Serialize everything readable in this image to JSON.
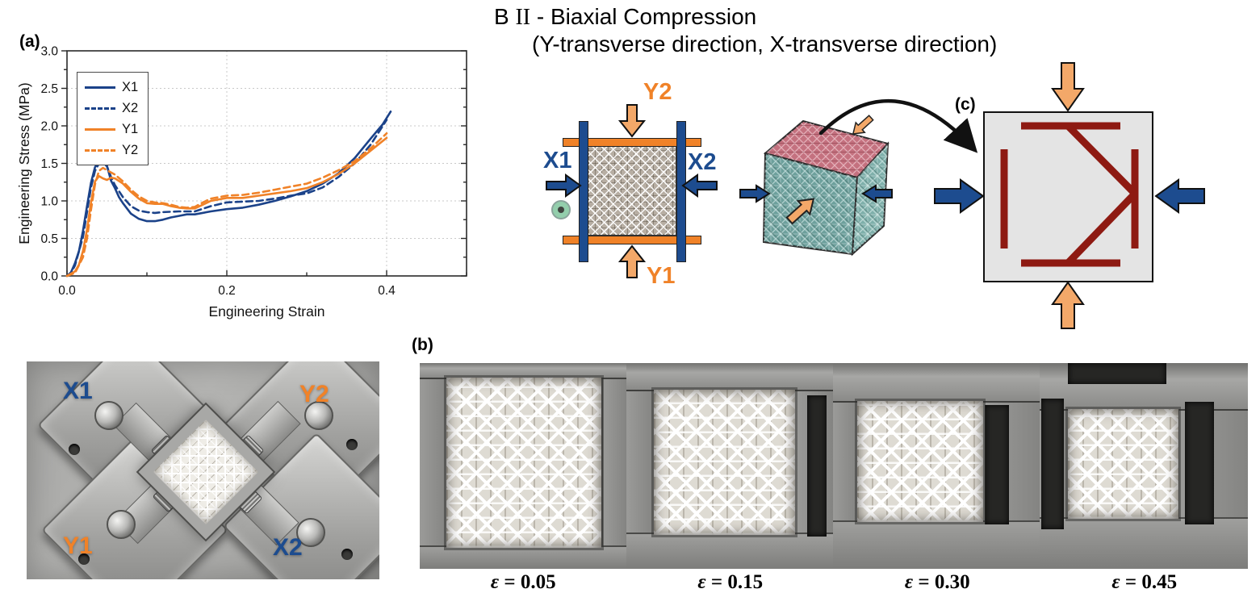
{
  "figure_title": {
    "prefix": "B",
    "roman_numeral": "II",
    "rest": "- Biaxial Compression",
    "line2": "(Y-transverse direction, X-transverse direction)"
  },
  "panel_labels": {
    "a": "(a)",
    "b": "(b)",
    "c": "(c)"
  },
  "chart_data": {
    "type": "line",
    "title": "",
    "xlabel": "Engineering Strain",
    "ylabel": "Engineering Stress (MPa)",
    "xlim": [
      0.0,
      0.5
    ],
    "ylim": [
      0.0,
      3.0
    ],
    "x_major_ticks": [
      0.0,
      0.2,
      0.4
    ],
    "x_minor_step": 0.1,
    "y_major_ticks": [
      0.0,
      0.5,
      1.0,
      1.5,
      2.0,
      2.5,
      3.0
    ],
    "y_minor_step": 0.25,
    "grid": "dotted",
    "legend_position": "upper-left",
    "series": [
      {
        "name": "X1",
        "color": "#1b4289",
        "style": "solid",
        "x": [
          0,
          0.005,
          0.01,
          0.015,
          0.02,
          0.025,
          0.03,
          0.035,
          0.04,
          0.045,
          0.05,
          0.055,
          0.06,
          0.065,
          0.07,
          0.08,
          0.09,
          0.1,
          0.11,
          0.12,
          0.13,
          0.14,
          0.15,
          0.16,
          0.18,
          0.2,
          0.22,
          0.24,
          0.26,
          0.28,
          0.3,
          0.32,
          0.34,
          0.36,
          0.38,
          0.395,
          0.405
        ],
        "y": [
          0,
          0.05,
          0.17,
          0.33,
          0.6,
          0.93,
          1.24,
          1.45,
          1.53,
          1.55,
          1.47,
          1.27,
          1.17,
          1.05,
          0.97,
          0.83,
          0.76,
          0.73,
          0.73,
          0.75,
          0.78,
          0.8,
          0.82,
          0.82,
          0.86,
          0.89,
          0.91,
          0.95,
          1.0,
          1.06,
          1.13,
          1.23,
          1.37,
          1.57,
          1.83,
          2.02,
          2.19
        ]
      },
      {
        "name": "X2",
        "color": "#1b4289",
        "style": "dashed",
        "x": [
          0,
          0.005,
          0.01,
          0.02,
          0.025,
          0.03,
          0.035,
          0.04,
          0.045,
          0.05,
          0.055,
          0.06,
          0.07,
          0.08,
          0.09,
          0.1,
          0.11,
          0.12,
          0.14,
          0.16,
          0.18,
          0.2,
          0.22,
          0.24,
          0.26,
          0.28,
          0.3,
          0.32,
          0.34,
          0.36,
          0.38,
          0.4
        ],
        "y": [
          0,
          0.04,
          0.14,
          0.52,
          0.85,
          1.18,
          1.4,
          1.5,
          1.52,
          1.46,
          1.32,
          1.21,
          1.05,
          0.93,
          0.87,
          0.85,
          0.84,
          0.85,
          0.86,
          0.86,
          0.93,
          0.98,
          0.99,
          1.0,
          1.03,
          1.07,
          1.1,
          1.18,
          1.32,
          1.5,
          1.75,
          2.08
        ]
      },
      {
        "name": "Y1",
        "color": "#f08228",
        "style": "solid",
        "x": [
          0,
          0.01,
          0.015,
          0.02,
          0.025,
          0.03,
          0.035,
          0.04,
          0.045,
          0.05,
          0.055,
          0.06,
          0.07,
          0.08,
          0.09,
          0.1,
          0.11,
          0.12,
          0.13,
          0.14,
          0.15,
          0.16,
          0.17,
          0.18,
          0.2,
          0.22,
          0.24,
          0.26,
          0.28,
          0.3,
          0.32,
          0.34,
          0.36,
          0.38,
          0.4
        ],
        "y": [
          0,
          0.06,
          0.15,
          0.33,
          0.62,
          0.98,
          1.26,
          1.33,
          1.3,
          1.28,
          1.31,
          1.3,
          1.23,
          1.12,
          1.03,
          0.97,
          0.96,
          0.96,
          0.93,
          0.91,
          0.9,
          0.9,
          0.95,
          1.0,
          1.04,
          1.04,
          1.07,
          1.1,
          1.13,
          1.17,
          1.25,
          1.36,
          1.5,
          1.67,
          1.84
        ]
      },
      {
        "name": "Y2",
        "color": "#f08228",
        "style": "dashed",
        "x": [
          0,
          0.01,
          0.02,
          0.025,
          0.03,
          0.035,
          0.04,
          0.045,
          0.05,
          0.06,
          0.07,
          0.08,
          0.09,
          0.1,
          0.11,
          0.12,
          0.13,
          0.14,
          0.15,
          0.16,
          0.17,
          0.18,
          0.2,
          0.22,
          0.24,
          0.26,
          0.28,
          0.3,
          0.32,
          0.34,
          0.36,
          0.38,
          0.4
        ],
        "y": [
          0,
          0.04,
          0.25,
          0.5,
          0.88,
          1.22,
          1.4,
          1.44,
          1.41,
          1.35,
          1.26,
          1.15,
          1.06,
          1.0,
          0.98,
          0.97,
          0.95,
          0.92,
          0.91,
          0.92,
          0.98,
          1.03,
          1.07,
          1.08,
          1.11,
          1.15,
          1.19,
          1.23,
          1.31,
          1.41,
          1.53,
          1.7,
          1.9
        ]
      }
    ]
  },
  "loading_schematic": {
    "labels": {
      "top": "Y2",
      "bottom": "Y1",
      "left": "X1",
      "right": "X2"
    },
    "x_color": "#1d4c8f",
    "y_color": "#f08228",
    "y_arrow_fill": "#f3a869",
    "out_of_plane_symbol": "circle-dot"
  },
  "unit_cell_schematic": {
    "bar_color": "#8e1a12",
    "background": "#e4e4e4"
  },
  "setup_photo": {
    "labels": {
      "top_left": "X1",
      "top_right": "Y2",
      "bottom_left": "Y1",
      "bottom_right": "X2"
    }
  },
  "snapshots": {
    "strain_labels": [
      "ε = 0.05",
      "ε = 0.15",
      "ε = 0.30",
      "ε = 0.45"
    ]
  }
}
